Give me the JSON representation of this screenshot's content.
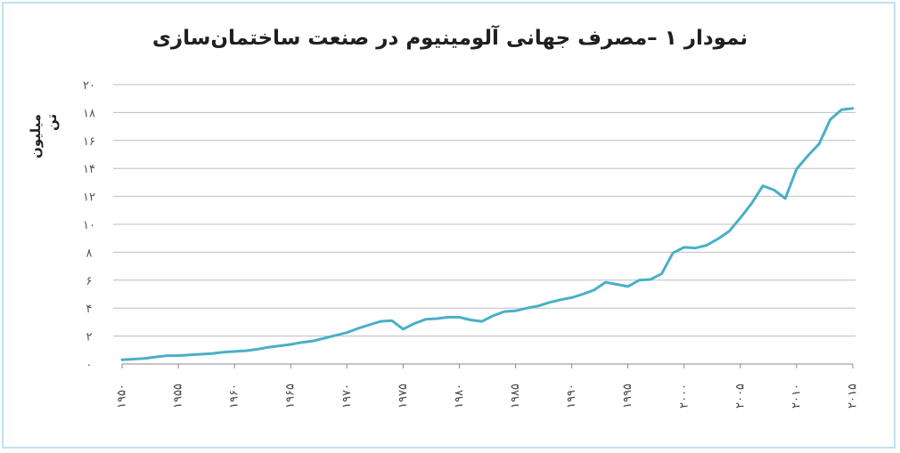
{
  "chart_data": {
    "type": "line",
    "title": "نمودار ۱ –مصرف جهانی آلومینیوم در صنعت ساختمان‌سازی",
    "xlabel": "",
    "ylabel": "میلیون تن",
    "xlim": [
      1950,
      2015
    ],
    "ylim": [
      0,
      20
    ],
    "y_ticks": [
      0,
      2,
      4,
      6,
      8,
      10,
      12,
      14,
      16,
      18,
      20
    ],
    "y_tick_labels": [
      "۰",
      "۲",
      "۴",
      "۶",
      "۸",
      "۱۰",
      "۱۲",
      "۱۴",
      "۱۶",
      "۱۸",
      "۲۰"
    ],
    "x_ticks": [
      1950,
      1955,
      1960,
      1965,
      1970,
      1975,
      1980,
      1985,
      1990,
      1995,
      2000,
      2005,
      2010,
      2015
    ],
    "x_tick_labels": [
      "۱۹۵۰",
      "۱۹۵۵",
      "۱۹۶۰",
      "۱۹۶۵",
      "۱۹۷۰",
      "۱۹۷۵",
      "۱۹۸۰",
      "۱۹۸۵",
      "۱۹۹۰",
      "۱۹۹۵",
      "۲۰۰۰",
      "۲۰۰۵",
      "۲۰۱۰",
      "۲۰۱۵"
    ],
    "grid": true,
    "line_color": "#4aafc7",
    "series": [
      {
        "x": [
          1950,
          1951,
          1952,
          1953,
          1954,
          1955,
          1956,
          1957,
          1958,
          1959,
          1960,
          1961,
          1962,
          1963,
          1964,
          1965,
          1966,
          1967,
          1968,
          1969,
          1970,
          1971,
          1972,
          1973,
          1974,
          1975,
          1976,
          1977,
          1978,
          1979,
          1980,
          1981,
          1982,
          1983,
          1984,
          1985,
          1986,
          1987,
          1988,
          1989,
          1990,
          1991,
          1992,
          1993,
          1994,
          1995,
          1996,
          1997,
          1998,
          1999,
          2000,
          2001,
          2002,
          2003,
          2004,
          2005,
          2006,
          2007,
          2008,
          2009,
          2010,
          2011,
          2012,
          2013,
          2014,
          2015
        ],
        "y": [
          0.3,
          0.35,
          0.4,
          0.5,
          0.6,
          0.6,
          0.65,
          0.7,
          0.75,
          0.85,
          0.9,
          0.95,
          1.05,
          1.2,
          1.3,
          1.4,
          1.55,
          1.65,
          1.85,
          2.05,
          2.25,
          2.55,
          2.8,
          3.05,
          3.1,
          2.5,
          2.9,
          3.2,
          3.25,
          3.35,
          3.35,
          3.15,
          3.05,
          3.45,
          3.75,
          3.8,
          4.0,
          4.15,
          4.4,
          4.6,
          4.75,
          5.0,
          5.3,
          5.85,
          5.7,
          5.55,
          6.0,
          6.05,
          6.45,
          7.95,
          8.35,
          8.3,
          8.5,
          8.95,
          9.5,
          10.45,
          11.5,
          12.75,
          12.45,
          11.85,
          13.95,
          14.9,
          15.75,
          17.5,
          18.2,
          18.3
        ]
      }
    ]
  }
}
